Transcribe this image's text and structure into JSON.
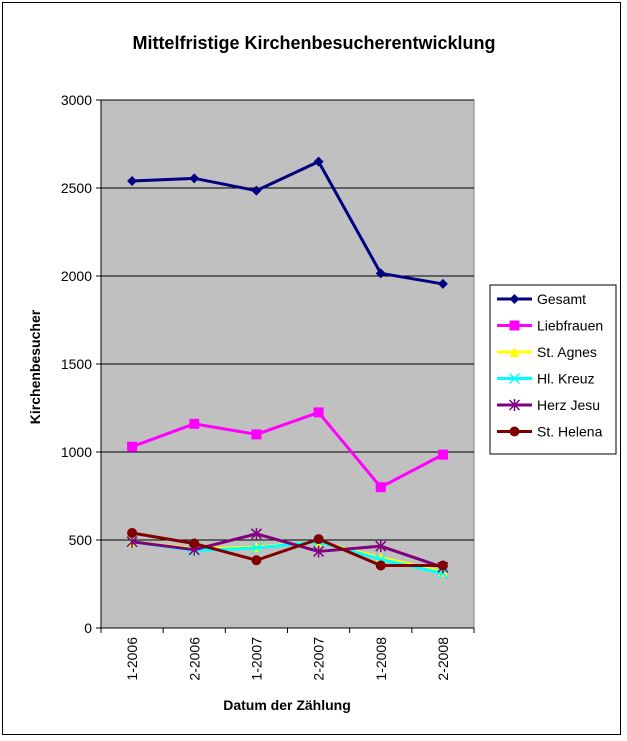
{
  "chart_data": {
    "type": "line",
    "title": "Mittelfristige Kirchenbesucherentwicklung",
    "xlabel": "Datum der Zählung",
    "ylabel": "Kirchenbesucher",
    "categories": [
      "1-2006",
      "2-2006",
      "1-2007",
      "2-2007",
      "1-2008",
      "2-2008"
    ],
    "ylim": [
      0,
      3000
    ],
    "yticks": [
      0,
      500,
      1000,
      1500,
      2000,
      2500,
      3000
    ],
    "grid": true,
    "legend": "right",
    "plot_background": "#c0c0c0",
    "series": [
      {
        "name": "Gesamt",
        "color": "#000080",
        "marker": "diamond",
        "values": [
          2540,
          2555,
          2485,
          2650,
          2015,
          1955
        ]
      },
      {
        "name": "Liebfrauen",
        "color": "#ff00ff",
        "marker": "square",
        "values": [
          1030,
          1160,
          1100,
          1225,
          800,
          985
        ]
      },
      {
        "name": "St. Agnes",
        "color": "#ffff00",
        "marker": "triangle",
        "values": [
          490,
          450,
          460,
          490,
          400,
          320
        ]
      },
      {
        "name": "Hl. Kreuz",
        "color": "#00ffff",
        "marker": "x",
        "values": [
          490,
          440,
          455,
          490,
          390,
          310
        ]
      },
      {
        "name": "Herz Jesu",
        "color": "#800080",
        "marker": "star",
        "values": [
          490,
          445,
          535,
          435,
          465,
          345
        ]
      },
      {
        "name": "St. Helena",
        "color": "#800000",
        "marker": "circle",
        "values": [
          540,
          480,
          385,
          505,
          355,
          355
        ]
      }
    ]
  }
}
